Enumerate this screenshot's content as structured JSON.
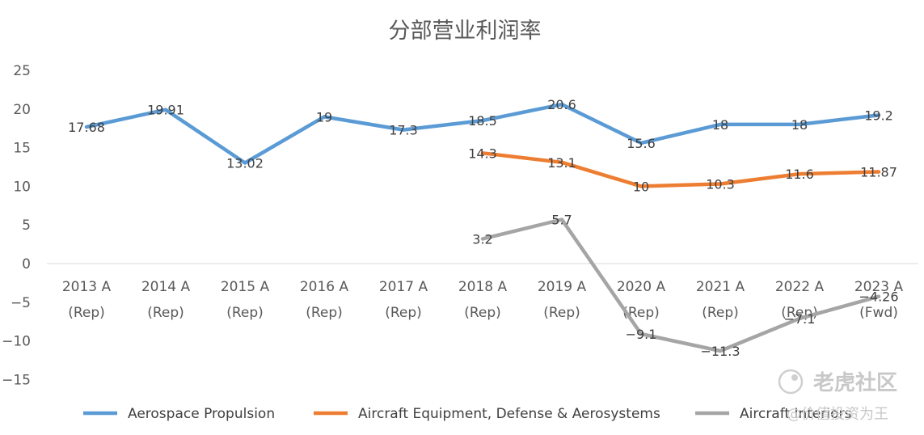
{
  "chart_data": {
    "type": "line",
    "title": "分部营业利润率",
    "categories": [
      [
        "2013 A",
        "(Rep)"
      ],
      [
        "2014 A",
        "(Rep)"
      ],
      [
        "2015 A",
        "(Rep)"
      ],
      [
        "2016 A",
        "(Rep)"
      ],
      [
        "2017 A",
        "(Rep)"
      ],
      [
        "2018 A",
        "(Rep)"
      ],
      [
        "2019 A",
        "(Rep)"
      ],
      [
        "2020 A",
        "(Rep)"
      ],
      [
        "2021 A",
        "(Rep)"
      ],
      [
        "2022 A",
        "(Rep)"
      ],
      [
        "2023 A",
        "(Fwd)"
      ]
    ],
    "ylim": [
      -15,
      25
    ],
    "yticks": [
      "25",
      "20",
      "15",
      "10",
      "5",
      "0",
      "−5",
      "−10",
      "−15"
    ],
    "ytick_values": [
      25,
      20,
      15,
      10,
      5,
      0,
      -5,
      -10,
      -15
    ],
    "series": [
      {
        "name": "Aerospace Propulsion",
        "color": "#5b9bd5",
        "values": [
          17.68,
          19.91,
          13.02,
          19,
          17.3,
          18.5,
          20.6,
          15.6,
          18,
          18,
          19.2
        ],
        "labels": [
          "17.68",
          "19.91",
          "13.02",
          "19",
          "17.3",
          "18.5",
          "20.6",
          "15.6",
          "18",
          "18",
          "19.2"
        ]
      },
      {
        "name": "Aircraft Equipment, Defense & Aerosystems",
        "color": "#ed7d31",
        "values": [
          null,
          null,
          null,
          null,
          null,
          14.3,
          13.1,
          10,
          10.3,
          11.6,
          11.87
        ],
        "labels": [
          "",
          "",
          "",
          "",
          "",
          "14.3",
          "13.1",
          "10",
          "10.3",
          "11.6",
          "11.87"
        ]
      },
      {
        "name": "Aircraft Interiors",
        "color": "#a5a5a5",
        "values": [
          null,
          null,
          null,
          null,
          null,
          3.2,
          5.7,
          -9.1,
          -11.3,
          -7.1,
          -4.26
        ],
        "labels": [
          "",
          "",
          "",
          "",
          "",
          "3.2",
          "5.7",
          "−9.1",
          "−11.3",
          "−7.1",
          "−4.26"
        ]
      }
    ]
  },
  "watermark": {
    "brand": "老虎社区",
    "author": "@价值投资为王"
  }
}
